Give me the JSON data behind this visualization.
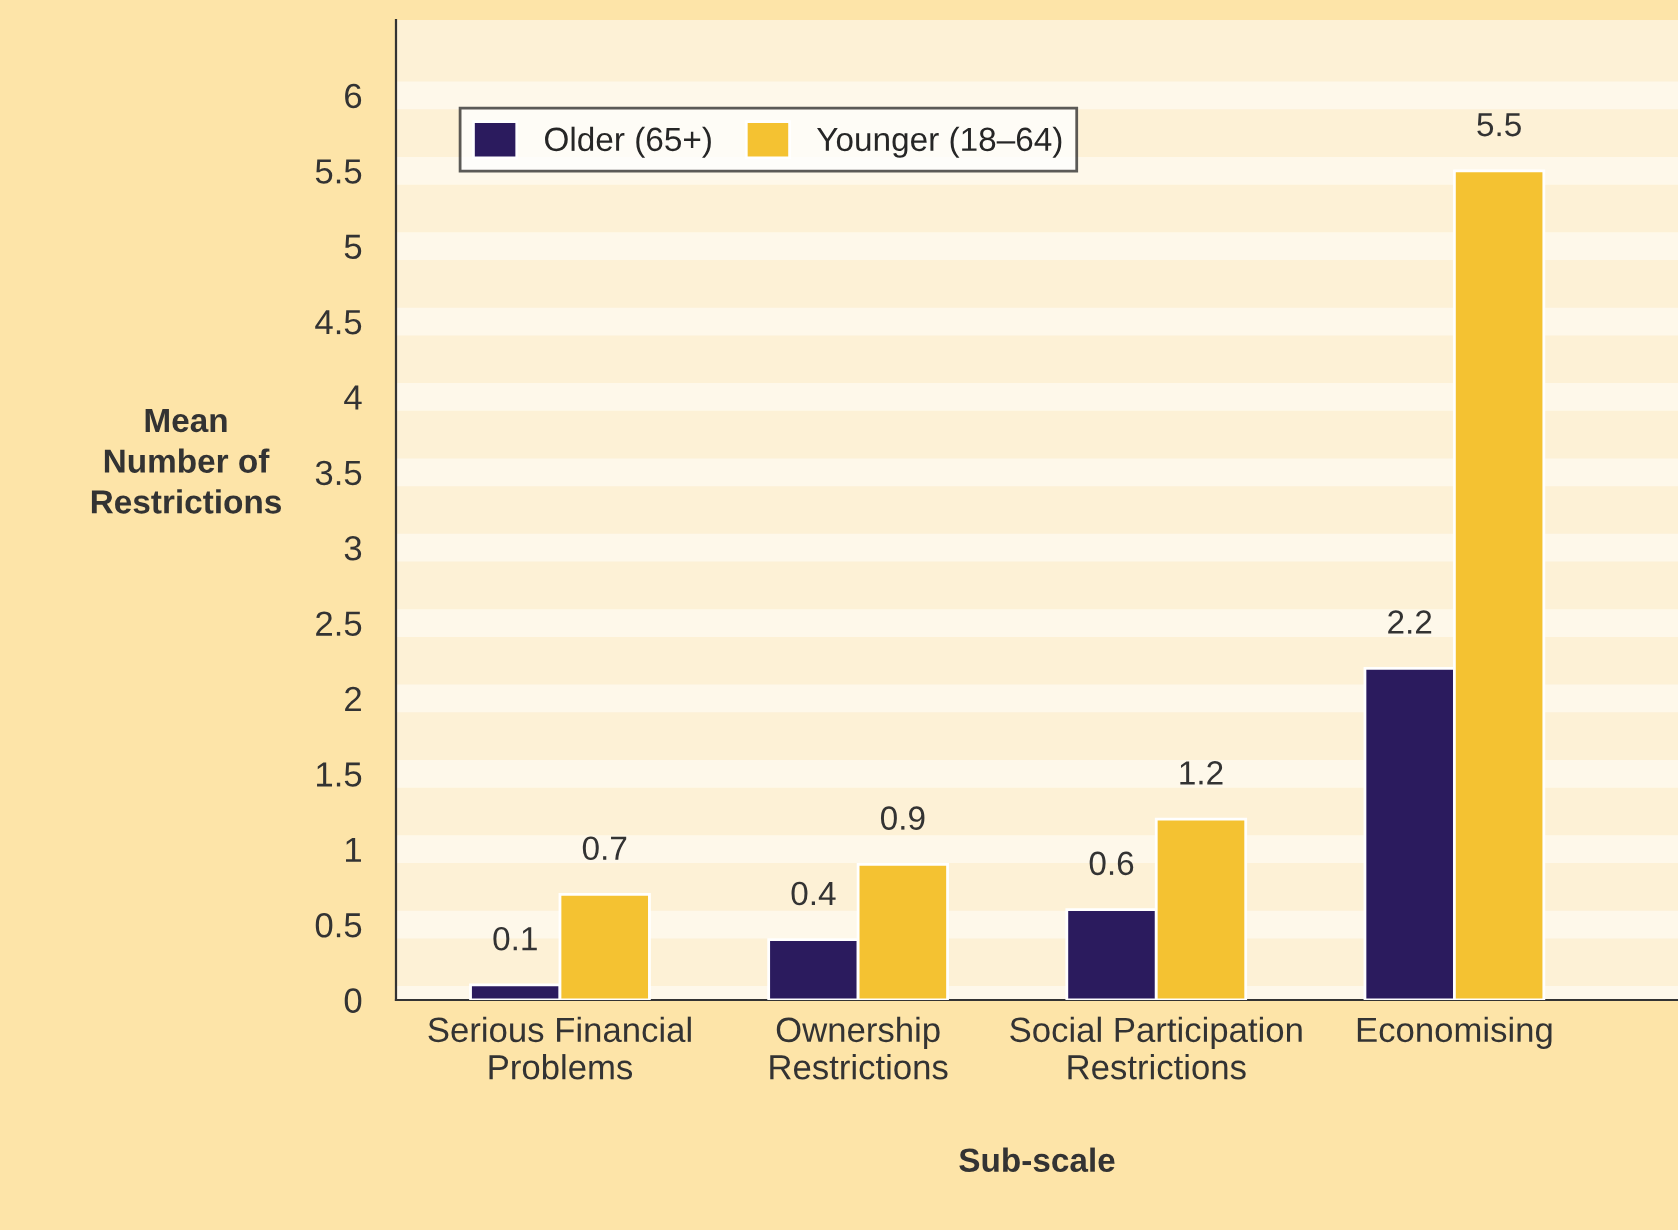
{
  "chart_data": {
    "type": "bar",
    "xlabel": "Sub-scale",
    "ylabel": "Mean\nNumber of\nRestrictions",
    "categories": [
      "Serious Financial\nProblems",
      "Ownership\nRestrictions",
      "Social Participation\nRestrictions",
      "Economising"
    ],
    "series": [
      {
        "name": "Older (65+)",
        "color": "#2b1b5e",
        "values": [
          0.1,
          0.4,
          0.6,
          2.2
        ]
      },
      {
        "name": "Younger (18–64)",
        "color": "#f4c232",
        "values": [
          0.7,
          0.9,
          1.2,
          5.5
        ]
      }
    ],
    "ylim": [
      0,
      6.5
    ],
    "yticks": [
      0,
      0.5,
      1,
      1.5,
      2,
      2.5,
      3,
      3.5,
      4,
      4.5,
      5,
      5.5,
      6
    ],
    "data_labels": true,
    "grid": "y",
    "legend": "top left"
  }
}
